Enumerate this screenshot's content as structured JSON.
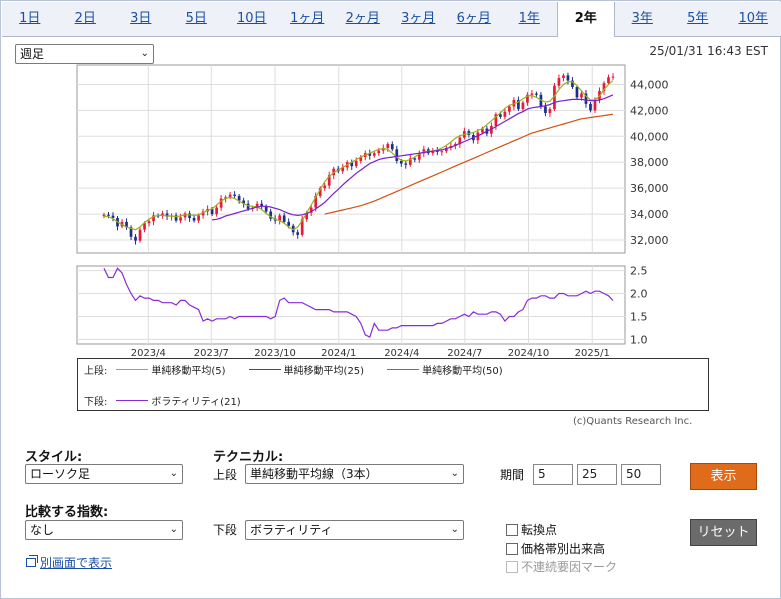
{
  "tabs": [
    "1日",
    "2日",
    "3日",
    "5日",
    "10日",
    "1ヶ月",
    "2ヶ月",
    "3ヶ月",
    "6ヶ月",
    "1年",
    "2年",
    "3年",
    "5年",
    "10年"
  ],
  "active_tab": "2年",
  "timeframe_select": "週足",
  "timestamp": "25/01/31 16:43 EST",
  "colors": {
    "up_candle": "#e8193a",
    "down_candle": "#1b2f8a",
    "ma5": "#9ab01c",
    "ma25": "#7a1fd0",
    "ma50": "#d25010",
    "volatility": "#8a2bd6"
  },
  "chart_data": [
    {
      "type": "candlestick",
      "ylim": [
        31000,
        45500
      ],
      "y_ticks": [
        "32,000",
        "34,000",
        "36,000",
        "38,000",
        "40,000",
        "42,000",
        "44,000"
      ],
      "x_ticks": [
        "2023/4",
        "2023/7",
        "2023/10",
        "2024/1",
        "2024/4",
        "2024/7",
        "2024/10",
        "2025/1"
      ],
      "x_range": [
        "2023-01-27",
        "2025-01-31"
      ],
      "close_weekly": [
        33950,
        33880,
        33700,
        33050,
        33400,
        32980,
        32250,
        31950,
        32800,
        33300,
        33450,
        33900,
        33850,
        34050,
        33800,
        33900,
        33500,
        33750,
        34050,
        33700,
        33500,
        33900,
        34200,
        34400,
        34000,
        34500,
        35200,
        35300,
        35500,
        35400,
        35050,
        34800,
        34400,
        34500,
        34800,
        34600,
        34200,
        33650,
        33500,
        33900,
        33400,
        33100,
        32600,
        32400,
        33600,
        34100,
        34500,
        35400,
        36000,
        36200,
        37000,
        37500,
        37300,
        37600,
        38000,
        37700,
        38100,
        38400,
        38700,
        38500,
        38700,
        38900,
        39100,
        39400,
        39000,
        38100,
        37900,
        37800,
        38300,
        38200,
        38700,
        39000,
        38700,
        38900,
        38800,
        38850,
        39100,
        39250,
        39400,
        39900,
        40400,
        40100,
        39700,
        40300,
        40600,
        40200,
        40800,
        41700,
        41500,
        41900,
        42300,
        42800,
        42100,
        42600,
        43200,
        43300,
        43200,
        42300,
        41800,
        42100,
        43900,
        44500,
        44700,
        44300,
        43800,
        43000,
        43300,
        42500,
        42000,
        42800,
        43500,
        44100,
        44550,
        44600
      ],
      "series": [
        {
          "name": "単純移動平均(5)",
          "values": [
            33850,
            33800,
            33650,
            33400,
            33200,
            33000,
            32900,
            32800,
            33000,
            33350,
            33600,
            33800,
            33900,
            33900,
            33850,
            33850,
            33800,
            33850,
            33950,
            33950,
            33900,
            33950,
            34100,
            34300,
            34400,
            34700,
            35000,
            35200,
            35300,
            35200,
            35000,
            34800,
            34650,
            34600,
            34550,
            34350,
            34050,
            33800,
            33600,
            33500,
            33300,
            33000,
            32800,
            33000,
            33500,
            34100,
            34700,
            35300,
            35900,
            36500,
            36900,
            37200,
            37400,
            37600,
            37800,
            38000,
            38200,
            38400,
            38550,
            38700,
            38850,
            39000,
            39050,
            39000,
            38700,
            38400,
            38150,
            38100,
            38200,
            38400,
            38650,
            38800,
            38850,
            38850,
            38950,
            39100,
            39300,
            39550,
            39850,
            40050,
            40150,
            40200,
            40300,
            40450,
            40600,
            40900,
            41200,
            41500,
            41800,
            42150,
            42400,
            42500,
            42650,
            42900,
            43100,
            43150,
            43000,
            42800,
            42650,
            42700,
            43100,
            43600,
            44000,
            44200,
            44200,
            43900,
            43500,
            43100,
            42800,
            42800,
            43100,
            43600,
            44000,
            44300
          ]
        },
        {
          "name": "単純移動平均(25)",
          "values": [
            null,
            null,
            null,
            null,
            null,
            null,
            null,
            null,
            null,
            null,
            null,
            null,
            null,
            null,
            null,
            null,
            null,
            null,
            null,
            null,
            null,
            null,
            null,
            null,
            33550,
            33600,
            33700,
            33850,
            33950,
            34050,
            34150,
            34250,
            34350,
            34450,
            34550,
            34600,
            34600,
            34550,
            34450,
            34350,
            34200,
            34050,
            33950,
            33900,
            33950,
            34050,
            34200,
            34400,
            34650,
            34900,
            35250,
            35600,
            35900,
            36250,
            36550,
            36850,
            37150,
            37400,
            37650,
            37900,
            38050,
            38200,
            38300,
            38350,
            38400,
            38450,
            38500,
            38550,
            38600,
            38650,
            38700,
            38750,
            38800,
            38850,
            38900,
            38950,
            39050,
            39150,
            39300,
            39450,
            39600,
            39750,
            39900,
            40050,
            40200,
            40400,
            40550,
            40750,
            40950,
            41150,
            41350,
            41550,
            41750,
            41900,
            42100,
            42200,
            42250,
            42300,
            42350,
            42450,
            42600,
            42700,
            42750,
            42800,
            42850,
            42850,
            42850,
            42800,
            42750,
            42750,
            42800,
            42900,
            43050,
            43200
          ]
        },
        {
          "name": "単純移動平均(50)",
          "values": [
            null,
            null,
            null,
            null,
            null,
            null,
            null,
            null,
            null,
            null,
            null,
            null,
            null,
            null,
            null,
            null,
            null,
            null,
            null,
            null,
            null,
            null,
            null,
            null,
            null,
            null,
            null,
            null,
            null,
            null,
            null,
            null,
            null,
            null,
            null,
            null,
            null,
            null,
            null,
            null,
            null,
            null,
            null,
            null,
            null,
            null,
            null,
            null,
            null,
            34000,
            34080,
            34160,
            34240,
            34320,
            34400,
            34480,
            34560,
            34650,
            34760,
            34880,
            35000,
            35150,
            35300,
            35450,
            35600,
            35750,
            35900,
            36050,
            36200,
            36350,
            36500,
            36650,
            36800,
            36950,
            37100,
            37250,
            37400,
            37550,
            37700,
            37850,
            38000,
            38150,
            38300,
            38450,
            38600,
            38750,
            38900,
            39050,
            39200,
            39350,
            39500,
            39650,
            39800,
            39950,
            40100,
            40250,
            40350,
            40450,
            40550,
            40650,
            40750,
            40850,
            40950,
            41050,
            41150,
            41250,
            41350,
            41400,
            41450,
            41500,
            41550,
            41600,
            41650,
            41700
          ]
        }
      ]
    },
    {
      "type": "line",
      "ylim": [
        0.9,
        2.6
      ],
      "y_ticks": [
        "1.0",
        "1.5",
        "2.0",
        "2.5"
      ],
      "x_ticks": [
        "2023/4",
        "2023/7",
        "2023/10",
        "2024/1",
        "2024/4",
        "2024/7",
        "2024/10",
        "2025/1"
      ],
      "series": [
        {
          "name": "ボラティリティ(21)",
          "values": [
            2.55,
            2.35,
            2.35,
            2.55,
            2.45,
            2.2,
            2.0,
            1.85,
            1.95,
            1.9,
            1.9,
            1.85,
            1.85,
            1.8,
            1.8,
            1.8,
            1.75,
            1.85,
            1.85,
            1.75,
            1.7,
            1.65,
            1.4,
            1.45,
            1.4,
            1.45,
            1.45,
            1.45,
            1.5,
            1.45,
            1.5,
            1.5,
            1.5,
            1.5,
            1.5,
            1.5,
            1.5,
            1.45,
            1.5,
            1.85,
            1.9,
            1.8,
            1.8,
            1.8,
            1.8,
            1.75,
            1.7,
            1.65,
            1.65,
            1.65,
            1.65,
            1.6,
            1.6,
            1.6,
            1.6,
            1.55,
            1.5,
            1.35,
            1.1,
            1.05,
            1.35,
            1.2,
            1.2,
            1.2,
            1.25,
            1.25,
            1.3,
            1.3,
            1.3,
            1.3,
            1.3,
            1.3,
            1.3,
            1.3,
            1.35,
            1.35,
            1.4,
            1.45,
            1.45,
            1.5,
            1.55,
            1.5,
            1.6,
            1.55,
            1.55,
            1.55,
            1.6,
            1.6,
            1.55,
            1.4,
            1.5,
            1.5,
            1.6,
            1.65,
            1.85,
            1.9,
            1.9,
            1.95,
            1.95,
            1.9,
            1.9,
            2.0,
            2.0,
            1.95,
            1.95,
            1.95,
            2.0,
            2.05,
            2.0,
            2.05,
            2.05,
            2.0,
            1.95,
            1.85
          ]
        }
      ]
    }
  ],
  "legend": {
    "upper_label": "上段:",
    "lower_label": "下段:",
    "upper_items": [
      "単純移動平均(5)",
      "単純移動平均(25)",
      "単純移動平均(50)"
    ],
    "lower_items": [
      "ボラティリティ(21)"
    ]
  },
  "credit": "(c)Quants Research Inc.",
  "controls": {
    "style_label": "スタイル:",
    "style_value": "ローソク足",
    "technical_label": "テクニカル:",
    "upper_label": "上段",
    "upper_value": "単純移動平均線（3本）",
    "period_label": "期間",
    "periods": [
      "5",
      "25",
      "50"
    ],
    "show_button": "表示",
    "compare_label": "比較する指数:",
    "compare_value": "なし",
    "lower_label": "下段",
    "lower_value": "ボラティリティ",
    "reset_button": "リセット",
    "checkboxes": [
      "転換点",
      "価格帯別出来高",
      "不連続要因マーク"
    ],
    "new_window_link": "別画面で表示"
  }
}
